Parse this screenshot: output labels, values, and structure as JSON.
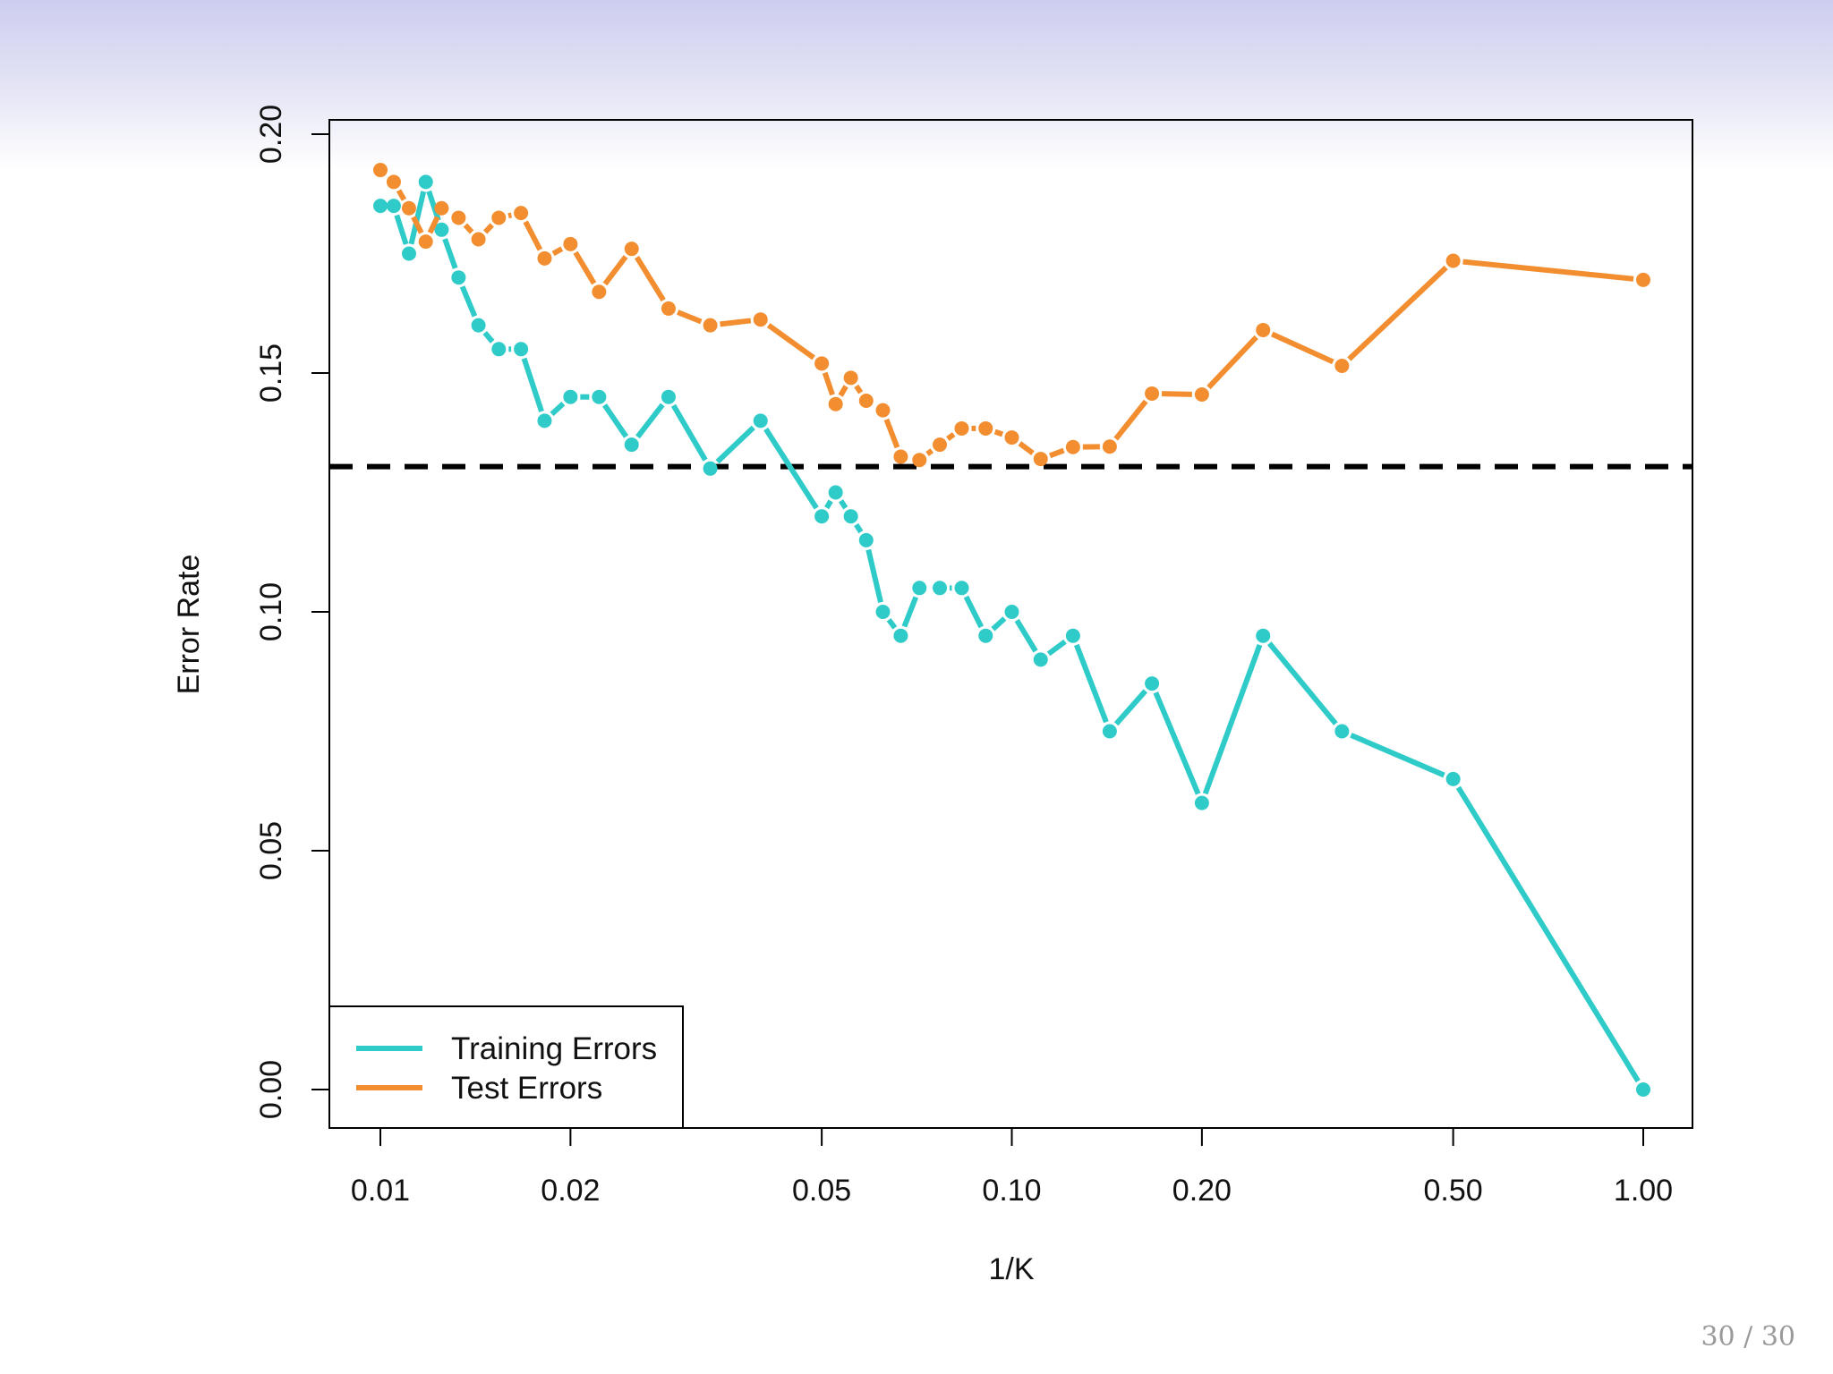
{
  "chart_data": {
    "type": "line",
    "xscale": "log",
    "xlabel": "1/K",
    "ylabel": "Error Rate",
    "xlim": [
      0.01,
      1.0
    ],
    "ylim": [
      0.0,
      0.2
    ],
    "x_ticks": [
      0.01,
      0.02,
      0.05,
      0.1,
      0.2,
      0.5,
      1.0
    ],
    "x_tick_labels": [
      "0.01",
      "0.02",
      "0.05",
      "0.10",
      "0.20",
      "0.50",
      "1.00"
    ],
    "y_ticks": [
      0.0,
      0.05,
      0.1,
      0.15,
      0.2
    ],
    "y_tick_labels": [
      "0.00",
      "0.05",
      "0.10",
      "0.15",
      "0.20"
    ],
    "grid": false,
    "legend_position": "bottom-left",
    "reference_line": {
      "y": 0.1304,
      "style": "dashed",
      "color": "#000000"
    },
    "series": [
      {
        "name": "Training Errors",
        "color": "#2ecbc8",
        "x": [
          0.01,
          0.0105,
          0.0111,
          0.0118,
          0.0125,
          0.0133,
          0.0143,
          0.0154,
          0.0167,
          0.0182,
          0.02,
          0.0222,
          0.025,
          0.0286,
          0.0333,
          0.04,
          0.05,
          0.0526,
          0.0556,
          0.0588,
          0.0625,
          0.0667,
          0.0714,
          0.0769,
          0.0833,
          0.0909,
          0.1,
          0.1111,
          0.125,
          0.1429,
          0.1667,
          0.2,
          0.25,
          0.3333,
          0.5,
          1.0
        ],
        "y": [
          0.185,
          0.185,
          0.175,
          0.19,
          0.18,
          0.17,
          0.16,
          0.155,
          0.155,
          0.14,
          0.145,
          0.145,
          0.135,
          0.145,
          0.13,
          0.14,
          0.12,
          0.125,
          0.12,
          0.115,
          0.1,
          0.095,
          0.105,
          0.105,
          0.105,
          0.095,
          0.1,
          0.09,
          0.095,
          0.075,
          0.085,
          0.06,
          0.095,
          0.075,
          0.065,
          0.0
        ]
      },
      {
        "name": "Test Errors",
        "color": "#f28e30",
        "x": [
          0.01,
          0.0105,
          0.0111,
          0.0118,
          0.0125,
          0.0133,
          0.0143,
          0.0154,
          0.0167,
          0.0182,
          0.02,
          0.0222,
          0.025,
          0.0286,
          0.0333,
          0.04,
          0.05,
          0.0526,
          0.0556,
          0.0588,
          0.0625,
          0.0667,
          0.0714,
          0.0769,
          0.0833,
          0.0909,
          0.1,
          0.1111,
          0.125,
          0.1429,
          0.1667,
          0.2,
          0.25,
          0.3333,
          0.5,
          1.0
        ],
        "y": [
          0.1925,
          0.19,
          0.1845,
          0.1775,
          0.1845,
          0.1825,
          0.178,
          0.1825,
          0.1835,
          0.174,
          0.177,
          0.167,
          0.176,
          0.1635,
          0.16,
          0.1612,
          0.152,
          0.1435,
          0.149,
          0.1442,
          0.1422,
          0.1325,
          0.1318,
          0.135,
          0.1384,
          0.1384,
          0.1365,
          0.132,
          0.1345,
          0.1346,
          0.1457,
          0.1455,
          0.159,
          0.1515,
          0.1735,
          0.1695
        ]
      }
    ]
  },
  "footer": {
    "page_number": "30 / 30"
  },
  "colors": {
    "header_band": "#cdcdef"
  }
}
